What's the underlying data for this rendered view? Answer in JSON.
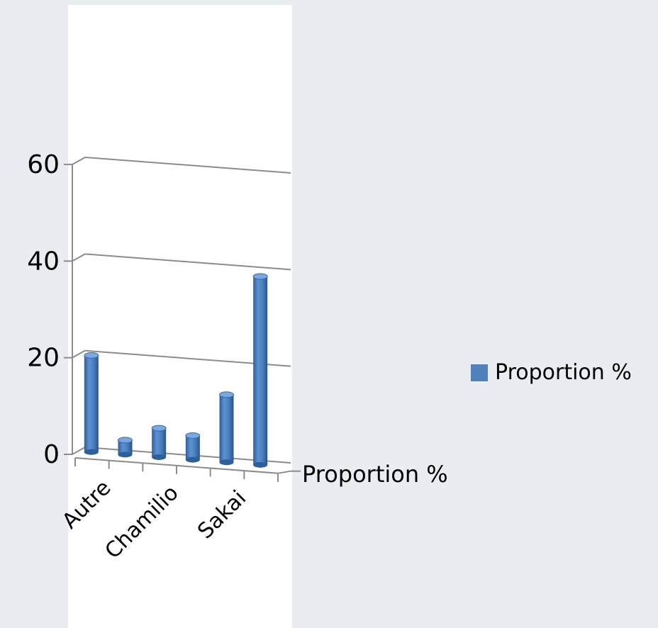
{
  "chart_data": {
    "type": "bar",
    "style": "3d-cylinder",
    "categories": [
      "Autre",
      "",
      "Chamilio",
      "",
      "Sakai",
      ""
    ],
    "series": [
      {
        "name": "Proportion %",
        "values": [
          20,
          3,
          6,
          5,
          14,
          39
        ]
      }
    ],
    "ylim": [
      0,
      60
    ],
    "yticks": [
      0,
      20,
      40,
      60
    ],
    "depth_axis_label": "Proportion %",
    "legend": {
      "position": "right",
      "label": "Proportion %"
    },
    "grid": true,
    "bar_color": "#4f81bd"
  }
}
